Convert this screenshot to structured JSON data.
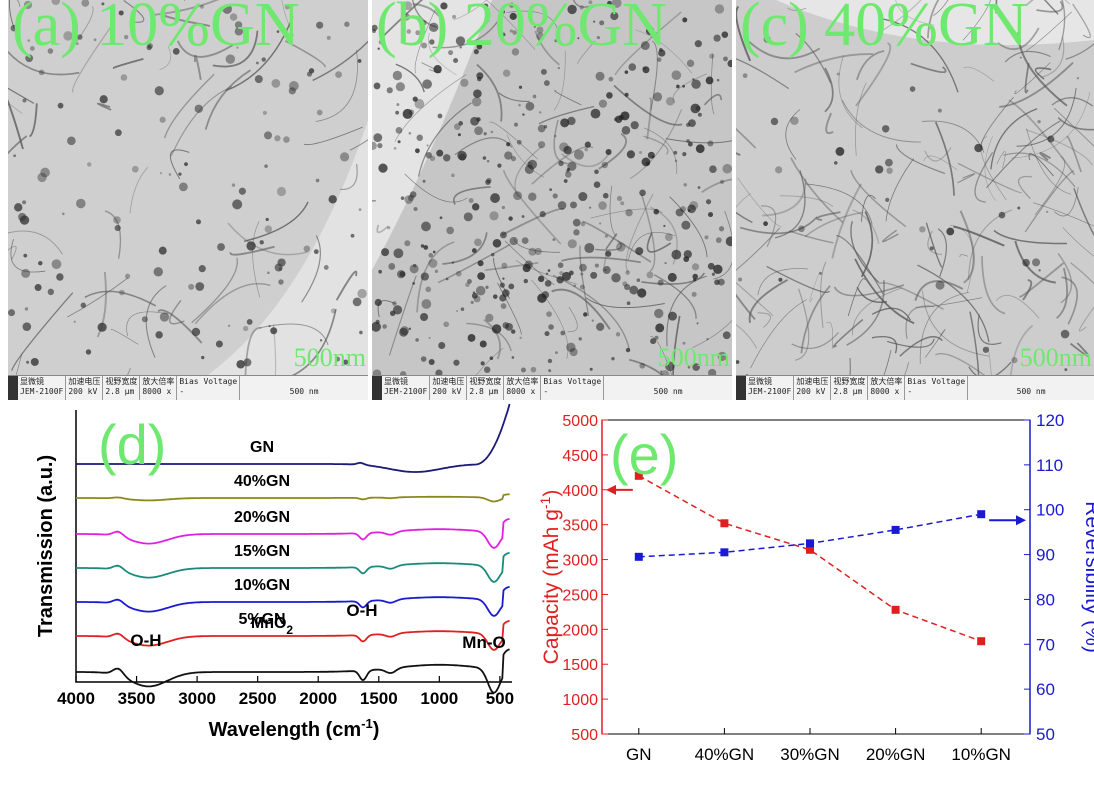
{
  "panels": [
    {
      "label": "(a) 10%GN",
      "scale": "500nm",
      "info": {
        "c1a": "显微镜",
        "c1b": "JEM-2100F",
        "c2a": "加速电压",
        "c2b": "200 kV",
        "c3a": "视野宽度",
        "c3b": "2.8 μm",
        "c4a": "放大倍率",
        "c4b": "8000 x",
        "c5a": "Bias Voltage",
        "c5b": "-",
        "bar": "500 nm"
      }
    },
    {
      "label": "(b) 20%GN",
      "scale": "500nm",
      "info": {
        "c1a": "显微镜",
        "c1b": "JEM-2100F",
        "c2a": "加速电压",
        "c2b": "200 kV",
        "c3a": "视野宽度",
        "c3b": "2.8 μm",
        "c4a": "放大倍率",
        "c4b": "8000 x",
        "c5a": "Bias Voltage",
        "c5b": "-",
        "bar": "500 nm"
      }
    },
    {
      "label": "(c) 40%GN",
      "scale": "500nm",
      "info": {
        "c1a": "显微镜",
        "c1b": "JEM-2100F",
        "c2a": "加速电压",
        "c2b": "200 kV",
        "c3a": "视野宽度",
        "c3b": "2.8 μm",
        "c4a": "放大倍率",
        "c4b": "8000 x",
        "c5a": "Bias Voltage",
        "c5b": "-",
        "bar": "500 nm"
      }
    }
  ],
  "colors": {
    "panel_label": "#6ee86e",
    "capacity": "#e02020",
    "reversibility": "#1a1ad0"
  },
  "chart_data": [
    {
      "type": "line",
      "panel_label": "(d)",
      "xlabel": "Wavelength (cm-1)",
      "ylabel": "Transmission (a.u.)",
      "xlim": [
        4000,
        400
      ],
      "x_reversed": true,
      "xticks": [
        4000,
        3500,
        3000,
        2500,
        2000,
        1500,
        1000,
        500
      ],
      "annotations": [
        "O-H",
        "MnO2",
        "O-H",
        "Mn-O"
      ],
      "series": [
        {
          "name": "GN",
          "color": "#1a1a78"
        },
        {
          "name": "40%GN",
          "color": "#8a8a1a"
        },
        {
          "name": "20%GN",
          "color": "#e020e0"
        },
        {
          "name": "15%GN",
          "color": "#1a8a7a"
        },
        {
          "name": "10%GN",
          "color": "#1a1ad0"
        },
        {
          "name": "5%GN",
          "color": "#e02020"
        },
        {
          "name": "MnO2",
          "color": "#111111"
        }
      ]
    },
    {
      "type": "line",
      "panel_label": "(e)",
      "categories": [
        "GN",
        "40%GN",
        "30%GN",
        "20%GN",
        "10%GN"
      ],
      "ylabel_left": "Capacity (mAh g-1)",
      "ylabel_right": "Reversibility (%)",
      "ylim_left": [
        500,
        5000
      ],
      "ylim_right": [
        50,
        120
      ],
      "yticks_left": [
        500,
        1000,
        1500,
        2000,
        2500,
        3000,
        3500,
        4000,
        4500,
        5000
      ],
      "yticks_right": [
        50,
        60,
        70,
        80,
        90,
        100,
        110,
        120
      ],
      "series": [
        {
          "name": "Capacity",
          "axis": "left",
          "values": [
            4200,
            3520,
            3140,
            2280,
            1830
          ]
        },
        {
          "name": "Reversibility",
          "axis": "right",
          "values": [
            89.5,
            90.5,
            92.5,
            95.5,
            99
          ]
        }
      ]
    }
  ]
}
